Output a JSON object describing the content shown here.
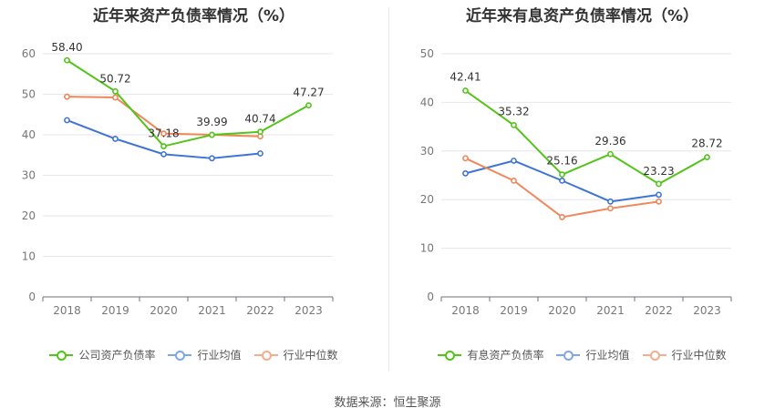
{
  "source": "数据来源：恒生聚源",
  "chart_data": [
    {
      "type": "line",
      "title": "近年来资产负债率情况（%）",
      "categories": [
        "2018",
        "2019",
        "2020",
        "2021",
        "2022",
        "2023"
      ],
      "y_ticks": [
        "0",
        "10",
        "20",
        "30",
        "40",
        "50",
        "60"
      ],
      "ylim": [
        0,
        60
      ],
      "grid": true,
      "legend_position": "bottom",
      "series": [
        {
          "name": "公司资产负债率",
          "color": "#52c41a",
          "labeled": true,
          "values": [
            58.4,
            50.72,
            37.18,
            39.99,
            40.74,
            47.27
          ],
          "labels": [
            "58.40",
            "50.72",
            "37.18",
            "39.99",
            "40.74",
            "47.27"
          ]
        },
        {
          "name": "行业均值",
          "color": "#3e74d6",
          "labeled": false,
          "values": [
            43.6,
            39.0,
            35.2,
            34.2,
            35.4,
            null
          ]
        },
        {
          "name": "行业中位数",
          "color": "#f0865b",
          "labeled": false,
          "values": [
            49.4,
            49.2,
            40.3,
            40.0,
            39.6,
            null
          ]
        }
      ]
    },
    {
      "type": "line",
      "title": "近年来有息资产负债率情况（%）",
      "categories": [
        "2018",
        "2019",
        "2020",
        "2021",
        "2022",
        "2023"
      ],
      "y_ticks": [
        "0",
        "10",
        "20",
        "30",
        "40",
        "50"
      ],
      "ylim": [
        0,
        50
      ],
      "grid": true,
      "legend_position": "bottom",
      "series": [
        {
          "name": "有息资产负债率",
          "color": "#52c41a",
          "labeled": true,
          "values": [
            42.41,
            35.32,
            25.16,
            29.36,
            23.23,
            28.72
          ],
          "labels": [
            "42.41",
            "35.32",
            "25.16",
            "29.36",
            "23.23",
            "28.72"
          ]
        },
        {
          "name": "行业均值",
          "color": "#3e74d6",
          "labeled": false,
          "values": [
            25.4,
            28.0,
            23.9,
            19.6,
            21.0,
            null
          ]
        },
        {
          "name": "行业中位数",
          "color": "#f0865b",
          "labeled": false,
          "values": [
            28.5,
            23.9,
            16.4,
            18.2,
            19.6,
            null
          ]
        }
      ]
    }
  ]
}
